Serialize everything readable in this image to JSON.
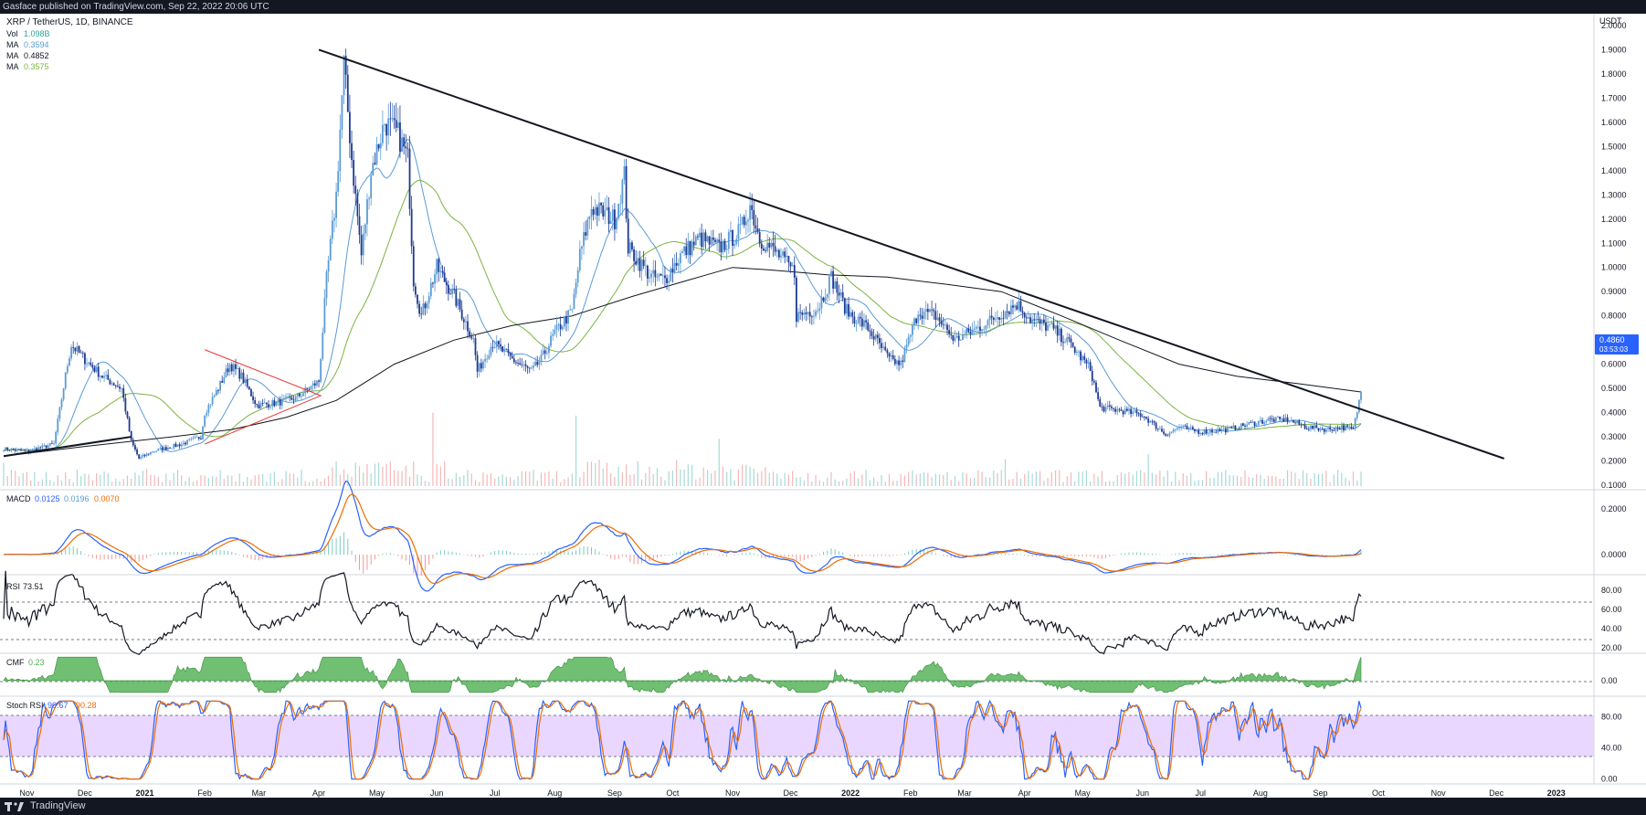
{
  "header": {
    "published": "Gasface published on TradingView.com, Sep 22, 2022 20:06 UTC"
  },
  "footer": {
    "brand": "TradingView"
  },
  "colors": {
    "blue": "#2962ff",
    "ma_light": "#5b9bd5",
    "ma_green": "#7cb342",
    "macd_orange": "#ef6c00",
    "cmf_green": "#4caf50",
    "stoch_band": "#e1c9ff",
    "candle_up": "#5b9bd5",
    "candle_down": "#1f3a93",
    "text": "#131722"
  },
  "chart_data": [
    {
      "type": "candlestick",
      "title": "XRP / TetherUS, 1D, BINANCE",
      "currency": "USDT",
      "indicators": [
        {
          "name": "Vol",
          "value": "1.098B",
          "color": "#26a69a"
        },
        {
          "name": "MA",
          "value": "0.3594",
          "color": "#5b9bd5"
        },
        {
          "name": "MA",
          "value": "0.4852",
          "color": "#131722"
        },
        {
          "name": "MA",
          "value": "0.3575",
          "color": "#7cb342"
        }
      ],
      "yticks": [
        "2.0000",
        "1.9000",
        "1.8000",
        "1.7000",
        "1.6000",
        "1.5000",
        "1.4000",
        "1.3000",
        "1.2000",
        "1.1000",
        "1.0000",
        "0.9000",
        "0.8000",
        "0.7000",
        "0.6000",
        "0.5000",
        "0.4000",
        "0.3000",
        "0.2000",
        "0.1000"
      ],
      "ylim": [
        0.1,
        2.0
      ],
      "last_price": "0.4860",
      "countdown": "03:53:03",
      "xticks": [
        "Nov",
        "Dec",
        "2021",
        "Feb",
        "Mar",
        "Apr",
        "May",
        "Jun",
        "Jul",
        "Aug",
        "Sep",
        "Oct",
        "Nov",
        "Dec",
        "2022",
        "Feb",
        "Mar",
        "Apr",
        "May",
        "Jun",
        "Jul",
        "Aug",
        "Sep",
        "Oct",
        "Nov",
        "Dec",
        "2023"
      ],
      "close_path": [
        [
          "2020-10-20",
          0.25
        ],
        [
          "2020-11-01",
          0.24
        ],
        [
          "2020-11-15",
          0.27
        ],
        [
          "2020-11-22",
          0.6
        ],
        [
          "2020-11-24",
          0.68
        ],
        [
          "2020-12-01",
          0.62
        ],
        [
          "2020-12-10",
          0.55
        ],
        [
          "2020-12-20",
          0.5
        ],
        [
          "2020-12-25",
          0.28
        ],
        [
          "2020-12-29",
          0.21
        ],
        [
          "2021-01-05",
          0.24
        ],
        [
          "2021-01-20",
          0.27
        ],
        [
          "2021-01-30",
          0.3
        ],
        [
          "2021-02-01",
          0.4
        ],
        [
          "2021-02-08",
          0.5
        ],
        [
          "2021-02-14",
          0.6
        ],
        [
          "2021-02-20",
          0.55
        ],
        [
          "2021-02-28",
          0.43
        ],
        [
          "2021-03-10",
          0.44
        ],
        [
          "2021-03-20",
          0.46
        ],
        [
          "2021-04-01",
          0.53
        ],
        [
          "2021-04-05",
          0.95
        ],
        [
          "2021-04-10",
          1.3
        ],
        [
          "2021-04-14",
          1.84
        ],
        [
          "2021-04-18",
          1.45
        ],
        [
          "2021-04-23",
          1.05
        ],
        [
          "2021-04-28",
          1.4
        ],
        [
          "2021-05-05",
          1.6
        ],
        [
          "2021-05-12",
          1.55
        ],
        [
          "2021-05-17",
          1.45
        ],
        [
          "2021-05-20",
          0.95
        ],
        [
          "2021-05-24",
          0.8
        ],
        [
          "2021-06-01",
          1.0
        ],
        [
          "2021-06-10",
          0.88
        ],
        [
          "2021-06-20",
          0.7
        ],
        [
          "2021-06-22",
          0.57
        ],
        [
          "2021-06-30",
          0.69
        ],
        [
          "2021-07-10",
          0.62
        ],
        [
          "2021-07-20",
          0.57
        ],
        [
          "2021-07-25",
          0.62
        ],
        [
          "2021-08-01",
          0.73
        ],
        [
          "2021-08-10",
          0.82
        ],
        [
          "2021-08-14",
          1.05
        ],
        [
          "2021-08-20",
          1.25
        ],
        [
          "2021-09-01",
          1.2
        ],
        [
          "2021-09-06",
          1.38
        ],
        [
          "2021-09-08",
          1.08
        ],
        [
          "2021-09-20",
          0.96
        ],
        [
          "2021-09-27",
          0.95
        ],
        [
          "2021-10-05",
          1.05
        ],
        [
          "2021-10-15",
          1.12
        ],
        [
          "2021-10-25",
          1.08
        ],
        [
          "2021-11-05",
          1.15
        ],
        [
          "2021-11-10",
          1.26
        ],
        [
          "2021-11-15",
          1.12
        ],
        [
          "2021-11-25",
          1.05
        ],
        [
          "2021-12-03",
          0.98
        ],
        [
          "2021-12-04",
          0.8
        ],
        [
          "2021-12-15",
          0.83
        ],
        [
          "2021-12-22",
          0.96
        ],
        [
          "2021-12-30",
          0.82
        ],
        [
          "2022-01-10",
          0.75
        ],
        [
          "2022-01-21",
          0.62
        ],
        [
          "2022-01-27",
          0.6
        ],
        [
          "2022-02-05",
          0.82
        ],
        [
          "2022-02-14",
          0.8
        ],
        [
          "2022-02-24",
          0.7
        ],
        [
          "2022-03-10",
          0.76
        ],
        [
          "2022-03-28",
          0.85
        ],
        [
          "2022-04-05",
          0.78
        ],
        [
          "2022-04-15",
          0.75
        ],
        [
          "2022-04-25",
          0.68
        ],
        [
          "2022-05-05",
          0.58
        ],
        [
          "2022-05-10",
          0.42
        ],
        [
          "2022-05-20",
          0.41
        ],
        [
          "2022-06-01",
          0.39
        ],
        [
          "2022-06-13",
          0.31
        ],
        [
          "2022-06-20",
          0.34
        ],
        [
          "2022-07-01",
          0.32
        ],
        [
          "2022-07-15",
          0.33
        ],
        [
          "2022-07-25",
          0.35
        ],
        [
          "2022-08-05",
          0.37
        ],
        [
          "2022-08-15",
          0.37
        ],
        [
          "2022-08-25",
          0.34
        ],
        [
          "2022-09-05",
          0.33
        ],
        [
          "2022-09-12",
          0.34
        ],
        [
          "2022-09-18",
          0.33
        ],
        [
          "2022-09-22",
          0.486
        ]
      ],
      "ma_slow_path": [
        [
          "2020-10-20",
          0.22
        ],
        [
          "2020-12-01",
          0.26
        ],
        [
          "2021-01-15",
          0.3
        ],
        [
          "2021-02-15",
          0.33
        ],
        [
          "2021-03-15",
          0.38
        ],
        [
          "2021-04-10",
          0.45
        ],
        [
          "2021-05-10",
          0.6
        ],
        [
          "2021-06-10",
          0.7
        ],
        [
          "2021-07-10",
          0.76
        ],
        [
          "2021-08-10",
          0.8
        ],
        [
          "2021-09-10",
          0.88
        ],
        [
          "2021-10-10",
          0.95
        ],
        [
          "2021-11-01",
          1.0
        ],
        [
          "2021-11-20",
          0.99
        ],
        [
          "2021-12-20",
          0.97
        ],
        [
          "2022-01-20",
          0.96
        ],
        [
          "2022-02-20",
          0.93
        ],
        [
          "2022-03-20",
          0.9
        ],
        [
          "2022-04-20",
          0.8
        ],
        [
          "2022-05-20",
          0.7
        ],
        [
          "2022-06-20",
          0.6
        ],
        [
          "2022-07-20",
          0.55
        ],
        [
          "2022-08-20",
          0.52
        ],
        [
          "2022-09-22",
          0.4852
        ]
      ],
      "trendlines": [
        {
          "from": [
            "2021-04-01",
            1.9
          ],
          "to": [
            "2022-12-05",
            0.21
          ],
          "color": "#131722"
        },
        {
          "from": [
            "2020-10-20",
            0.22
          ],
          "to": [
            "2020-12-25",
            0.3
          ],
          "color": "#131722"
        }
      ],
      "triangle": {
        "from": [
          "2021-02-01",
          0.66
        ],
        "apex": [
          "2021-04-02",
          0.47
        ],
        "base": [
          "2021-02-01",
          0.27
        ],
        "color": "#e53935"
      }
    },
    {
      "type": "line",
      "name": "MACD",
      "values": [
        "0.0125",
        "0.0196",
        "0.0070"
      ],
      "value_colors": [
        "#2962ff",
        "#5b9bd5",
        "#ef6c00"
      ],
      "yticks": [
        "0.2000",
        "0.0000"
      ],
      "ylim": [
        -0.08,
        0.28
      ]
    },
    {
      "type": "line",
      "name": "RSI",
      "value": "73.51",
      "yticks": [
        "80.00",
        "60.00",
        "40.00",
        "20.00"
      ],
      "levels": [
        70,
        30
      ],
      "ylim": [
        15,
        95
      ]
    },
    {
      "type": "area",
      "name": "CMF",
      "value": "0.23",
      "yticks": [
        "0.00"
      ],
      "ylim": [
        -0.25,
        0.45
      ]
    },
    {
      "type": "line",
      "name": "Stoch RSI",
      "values": [
        "90.67",
        "90.28"
      ],
      "value_colors": [
        "#2962ff",
        "#ef6c00"
      ],
      "yticks": [
        "80.00",
        "40.00",
        "0.00"
      ],
      "band": [
        20,
        80
      ],
      "ylim": [
        -5,
        105
      ]
    }
  ]
}
